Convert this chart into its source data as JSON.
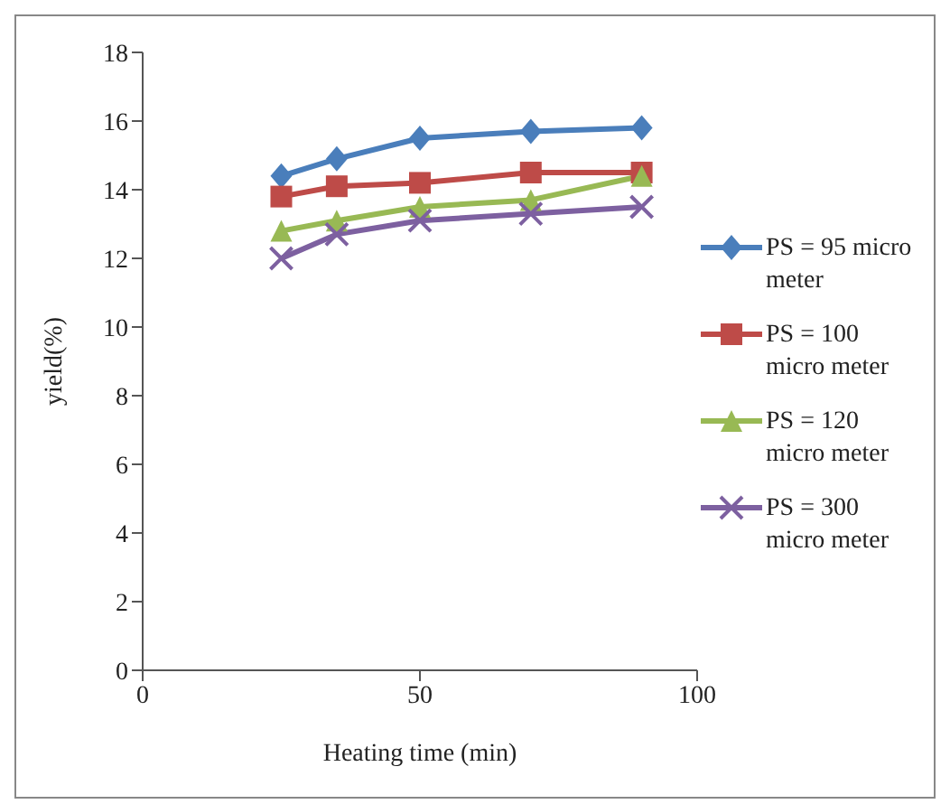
{
  "chart_data": {
    "type": "line",
    "xlabel": "Heating time (min)",
    "ylabel": "yield(%)",
    "x": [
      25,
      35,
      50,
      70,
      90
    ],
    "xlim": [
      0,
      100
    ],
    "xticks": [
      0,
      50,
      100
    ],
    "ylim": [
      0,
      18
    ],
    "yticks": [
      0,
      2,
      4,
      6,
      8,
      10,
      12,
      14,
      16,
      18
    ],
    "grid": false,
    "legend": "right",
    "series": [
      {
        "name": "PS = 95 micro meter",
        "color": "#4a7ebb",
        "marker": "diamond",
        "values": [
          14.4,
          14.9,
          15.5,
          15.7,
          15.8
        ]
      },
      {
        "name": "PS = 100 micro meter",
        "color": "#be4b48",
        "marker": "square",
        "values": [
          13.8,
          14.1,
          14.2,
          14.5,
          14.5
        ]
      },
      {
        "name": "PS = 120 micro meter",
        "color": "#98b954",
        "marker": "triangle",
        "values": [
          12.8,
          13.1,
          13.5,
          13.7,
          14.4
        ]
      },
      {
        "name": "PS = 300 micro meter",
        "color": "#7d60a0",
        "marker": "cross",
        "values": [
          12.0,
          12.7,
          13.1,
          13.3,
          13.5
        ]
      }
    ]
  }
}
